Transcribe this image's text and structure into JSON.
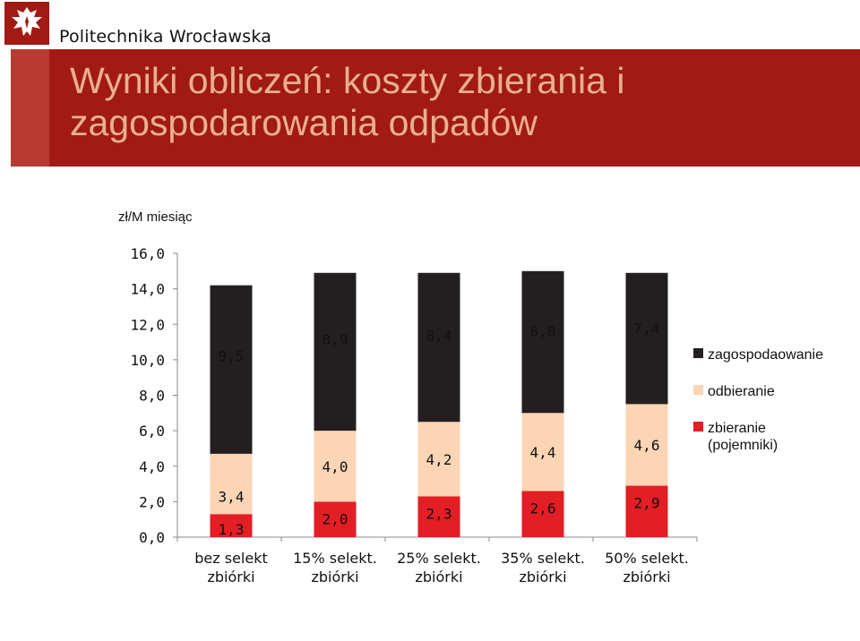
{
  "header": {
    "university_name": "Politechnika Wrocławska",
    "logo_icon": "eagle-crest-icon"
  },
  "slide": {
    "title": "Wyniki obliczeń: koszty zbierania i zagospodarowania odpadów"
  },
  "colors": {
    "title_band": "#a21a14",
    "title_text": "#e9b090",
    "zagospodarowanie": "#231f20",
    "odbieranie": "#fcd5b5",
    "zbieranie": "#e31e24"
  },
  "chart_data": {
    "type": "bar",
    "stacked": true,
    "ylabel": "zł/M miesiąc",
    "ylim": [
      0,
      16
    ],
    "yticks": [
      "0,0",
      "2,0",
      "4,0",
      "6,0",
      "8,0",
      "10,0",
      "12,0",
      "14,0",
      "16,0"
    ],
    "grid": false,
    "legend_position": "right",
    "categories": [
      [
        "bez selekt",
        "zbiórki"
      ],
      [
        "15% selekt.",
        "zbiórki"
      ],
      [
        "25% selekt.",
        "zbiórki"
      ],
      [
        "35% selekt.",
        "zbiórki"
      ],
      [
        "50% selekt.",
        "zbiórki"
      ]
    ],
    "series": [
      {
        "name": "zbieranie (pojemniki)",
        "legend_lines": [
          "zbieranie",
          "(pojemniki)"
        ],
        "color": "#e31e24",
        "values": [
          1.3,
          2.0,
          2.3,
          2.6,
          2.9
        ],
        "labels": [
          "1,3",
          "2,0",
          "2,3",
          "2,6",
          "2,9"
        ]
      },
      {
        "name": "odbieranie",
        "legend_lines": [
          "odbieranie"
        ],
        "color": "#fcd5b5",
        "values": [
          3.4,
          4.0,
          4.2,
          4.4,
          4.6
        ],
        "labels": [
          "3,4",
          "4,0",
          "4,2",
          "4,4",
          "4,6"
        ]
      },
      {
        "name": "zagospodaowanie",
        "legend_lines": [
          "zagospodaowanie"
        ],
        "color": "#231f20",
        "values": [
          9.5,
          8.9,
          8.4,
          8.0,
          7.4
        ],
        "labels": [
          "9,5",
          "8,9",
          "8,4",
          "8,0",
          "7,4"
        ]
      }
    ]
  }
}
